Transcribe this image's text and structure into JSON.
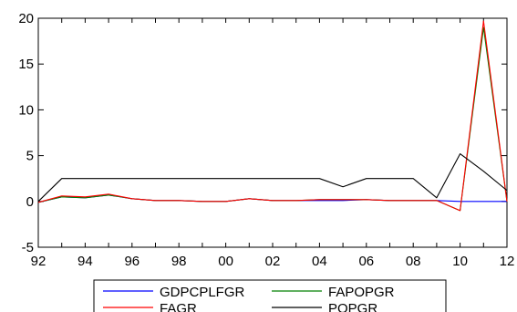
{
  "chart_data": {
    "type": "line",
    "title": "",
    "xlabel": "",
    "ylabel": "",
    "x": [
      1992,
      1993,
      1994,
      1995,
      1996,
      1997,
      1998,
      1999,
      2000,
      2001,
      2002,
      2003,
      2004,
      2005,
      2006,
      2007,
      2008,
      2009,
      2010,
      2011,
      2012
    ],
    "xlim": [
      1992,
      2012
    ],
    "ylim": [
      -5,
      20
    ],
    "x_ticks": [
      {
        "value": 1992,
        "label": "92"
      },
      {
        "value": 1994,
        "label": "94"
      },
      {
        "value": 1996,
        "label": "96"
      },
      {
        "value": 1998,
        "label": "98"
      },
      {
        "value": 2000,
        "label": "00"
      },
      {
        "value": 2002,
        "label": "02"
      },
      {
        "value": 2004,
        "label": "04"
      },
      {
        "value": 2006,
        "label": "06"
      },
      {
        "value": 2008,
        "label": "08"
      },
      {
        "value": 2010,
        "label": "10"
      },
      {
        "value": 2012,
        "label": "12"
      }
    ],
    "y_ticks": [
      {
        "value": -5,
        "label": "-5"
      },
      {
        "value": 0,
        "label": "0"
      },
      {
        "value": 5,
        "label": "5"
      },
      {
        "value": 10,
        "label": "10"
      },
      {
        "value": 15,
        "label": "15"
      },
      {
        "value": 20,
        "label": "20"
      }
    ],
    "grid": false,
    "legend_position": "bottom",
    "series": [
      {
        "name": "GDPCPLFGR",
        "color": "#0000ff",
        "values": [
          -0.1,
          0.5,
          0.4,
          0.7,
          0.3,
          0.1,
          0.1,
          0.0,
          0.0,
          0.3,
          0.1,
          0.1,
          0.1,
          0.1,
          0.2,
          0.1,
          0.1,
          0.1,
          0.0,
          0.0,
          0.0
        ]
      },
      {
        "name": "FAPOPGR",
        "color": "#008000",
        "values": [
          -0.1,
          0.5,
          0.4,
          0.7,
          0.3,
          0.1,
          0.1,
          0.0,
          0.0,
          0.3,
          0.1,
          0.1,
          0.2,
          0.2,
          0.2,
          0.1,
          0.1,
          0.1,
          -1.0,
          19.0,
          0.0
        ]
      },
      {
        "name": "FAGR",
        "color": "#ff0000",
        "values": [
          -0.1,
          0.6,
          0.5,
          0.8,
          0.3,
          0.1,
          0.1,
          0.0,
          0.0,
          0.3,
          0.1,
          0.1,
          0.2,
          0.2,
          0.2,
          0.1,
          0.1,
          0.1,
          -1.0,
          19.7,
          0.0
        ]
      },
      {
        "name": "POPGR",
        "color": "#000000",
        "values": [
          0.0,
          2.5,
          2.5,
          2.5,
          2.5,
          2.5,
          2.5,
          2.5,
          2.5,
          2.5,
          2.5,
          2.5,
          2.5,
          1.6,
          2.5,
          2.5,
          2.5,
          0.4,
          5.2,
          3.3,
          1.2
        ]
      }
    ]
  }
}
